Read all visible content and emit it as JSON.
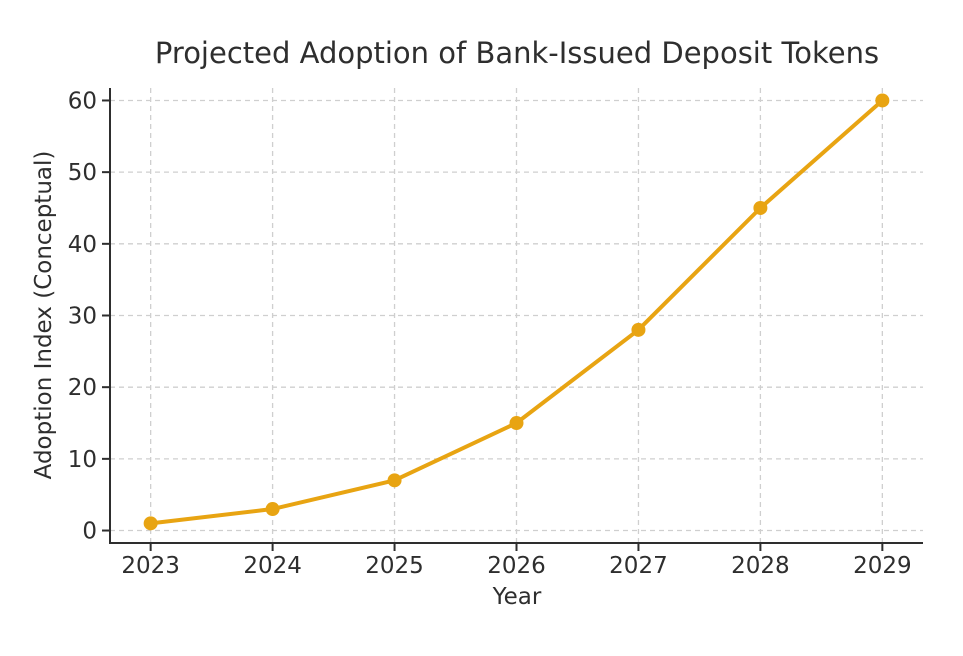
{
  "chart_data": {
    "type": "line",
    "title": "Projected Adoption of Bank-Issued Deposit Tokens",
    "xlabel": "Year",
    "ylabel": "Adoption Index (Conceptual)",
    "categories": [
      "2023",
      "2024",
      "2025",
      "2026",
      "2027",
      "2028",
      "2029"
    ],
    "values": [
      1,
      3,
      7,
      15,
      28,
      45,
      60
    ],
    "ylim": [
      0,
      60
    ],
    "yticks": [
      0,
      10,
      20,
      30,
      40,
      50,
      60
    ],
    "grid": true,
    "grid_style": "dashed",
    "legend": false,
    "colors": {
      "line": "#E8A412",
      "marker": "#E8A412",
      "grid": "#CFCFCF",
      "spine": "#2E2E2E",
      "tick": "#2E2E2E",
      "text": "#2E2E2E",
      "background": "#FFFFFF"
    }
  }
}
